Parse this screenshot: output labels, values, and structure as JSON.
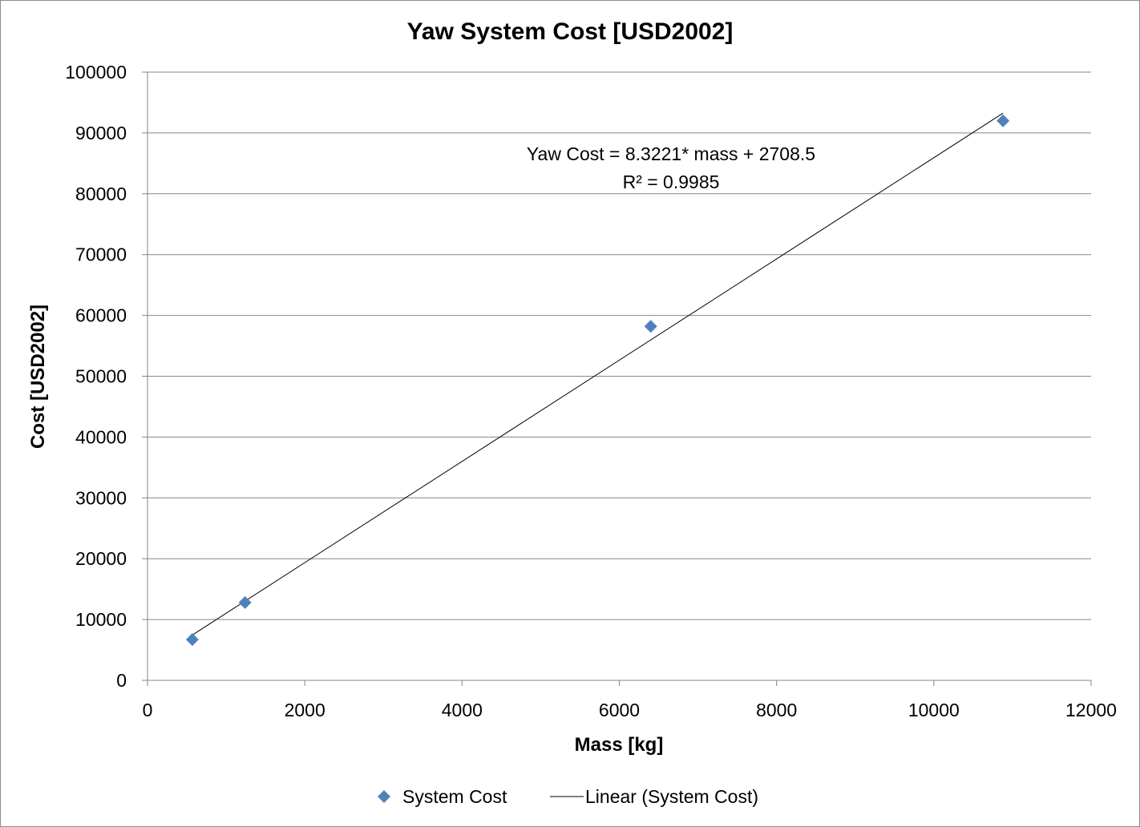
{
  "chart_data": {
    "type": "scatter",
    "title": "Yaw System Cost [USD2002]",
    "xlabel": "Mass [kg]",
    "ylabel": "Cost [USD2002]",
    "xlim": [
      0,
      12000
    ],
    "ylim": [
      0,
      100000
    ],
    "x_ticks": [
      "0",
      "2000",
      "4000",
      "6000",
      "8000",
      "10000",
      "12000"
    ],
    "y_ticks": [
      "0",
      "10000",
      "20000",
      "30000",
      "40000",
      "50000",
      "60000",
      "70000",
      "80000",
      "90000",
      "100000"
    ],
    "grid": "horizontal",
    "legend_position": "bottom",
    "series": [
      {
        "name": "System Cost",
        "marker": "diamond",
        "color": "#4f81bd",
        "x": [
          570,
          1240,
          6400,
          10880
        ],
        "y": [
          6700,
          12800,
          58200,
          92000
        ]
      }
    ],
    "trendline": {
      "name": "Linear (System Cost)",
      "color": "#000000",
      "slope": 8.3221,
      "intercept": 2708.5,
      "x_range": [
        570,
        10880
      ],
      "equation": "Yaw Cost = 8.3221* mass + 2708.5",
      "r_squared": "R² = 0.9985"
    }
  }
}
